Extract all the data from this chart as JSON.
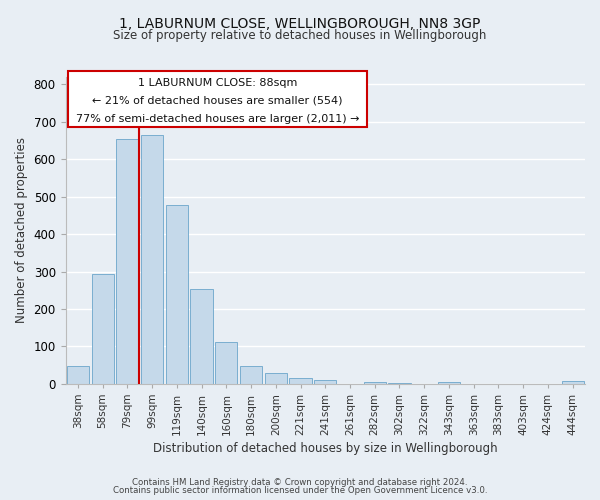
{
  "title": "1, LABURNUM CLOSE, WELLINGBOROUGH, NN8 3GP",
  "subtitle": "Size of property relative to detached houses in Wellingborough",
  "xlabel": "Distribution of detached houses by size in Wellingborough",
  "ylabel": "Number of detached properties",
  "bar_labels": [
    "38sqm",
    "58sqm",
    "79sqm",
    "99sqm",
    "119sqm",
    "140sqm",
    "160sqm",
    "180sqm",
    "200sqm",
    "221sqm",
    "241sqm",
    "261sqm",
    "282sqm",
    "302sqm",
    "322sqm",
    "343sqm",
    "363sqm",
    "383sqm",
    "403sqm",
    "424sqm",
    "444sqm"
  ],
  "bar_values": [
    48,
    293,
    655,
    665,
    478,
    253,
    113,
    48,
    28,
    15,
    10,
    0,
    5,
    3,
    0,
    5,
    0,
    0,
    0,
    0,
    7
  ],
  "bar_color": "#c5d9ea",
  "bar_edge_color": "#7aaed0",
  "vline_color": "#cc0000",
  "vline_x_index": 2,
  "annotation_line1": "1 LABURNUM CLOSE: 88sqm",
  "annotation_line2": "← 21% of detached houses are smaller (554)",
  "annotation_line3": "77% of semi-detached houses are larger (2,011) →",
  "box_edge_color": "#cc0000",
  "ylim": [
    0,
    820
  ],
  "yticks": [
    0,
    100,
    200,
    300,
    400,
    500,
    600,
    700,
    800
  ],
  "footer_line1": "Contains HM Land Registry data © Crown copyright and database right 2024.",
  "footer_line2": "Contains public sector information licensed under the Open Government Licence v3.0.",
  "bg_color": "#e8eef4",
  "plot_bg_color": "#e8eef4",
  "grid_color": "#ffffff"
}
